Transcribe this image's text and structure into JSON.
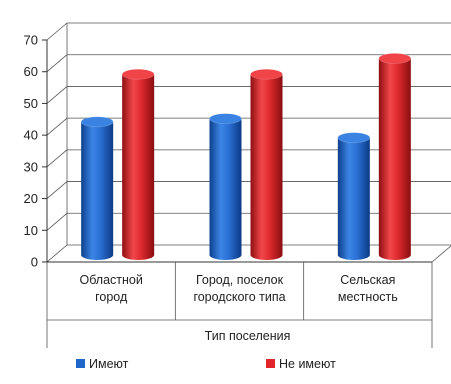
{
  "chart_data": {
    "type": "bar",
    "categories": [
      "Областной город",
      "Город, поселок городского типа",
      "Сельская местность"
    ],
    "category_label_lines": [
      [
        "Областной",
        "город"
      ],
      [
        "Город, поселок",
        "городского типа"
      ],
      [
        "Сельская",
        "местность"
      ]
    ],
    "series": [
      {
        "name": "Имеют",
        "values": [
          42,
          43,
          37
        ],
        "color": "#1F66C9"
      },
      {
        "name": "Не имеют",
        "values": [
          57,
          57,
          62
        ],
        "color": "#E0242A"
      }
    ],
    "xlabel": "Тип поселения",
    "ylabel": "",
    "title": "",
    "ylim": [
      0,
      70
    ],
    "yticks": [
      0,
      10,
      20,
      30,
      40,
      50,
      60,
      70
    ],
    "grid": true,
    "legend_position": "bottom",
    "style": "3d-cylinder"
  }
}
